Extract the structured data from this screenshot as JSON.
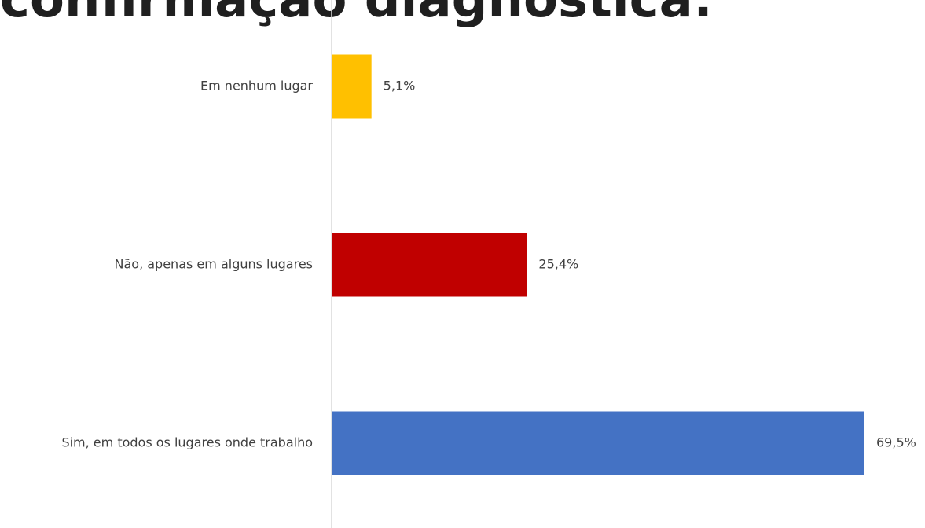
{
  "title": "confirmação diagnóstica:",
  "chart_data": {
    "type": "bar",
    "orientation": "horizontal",
    "categories": [
      "Em nenhum lugar",
      "Não, apenas em alguns lugares",
      "Sim, em todos os lugares onde trabalho"
    ],
    "values": [
      5.1,
      25.4,
      69.5
    ],
    "value_labels": [
      "5,1%",
      "25,4%",
      "69,5%"
    ],
    "colors": [
      "#FFC000",
      "#C00000",
      "#4472C4"
    ],
    "xlim": [
      0,
      69.5
    ],
    "grid": false,
    "legend": "none"
  }
}
